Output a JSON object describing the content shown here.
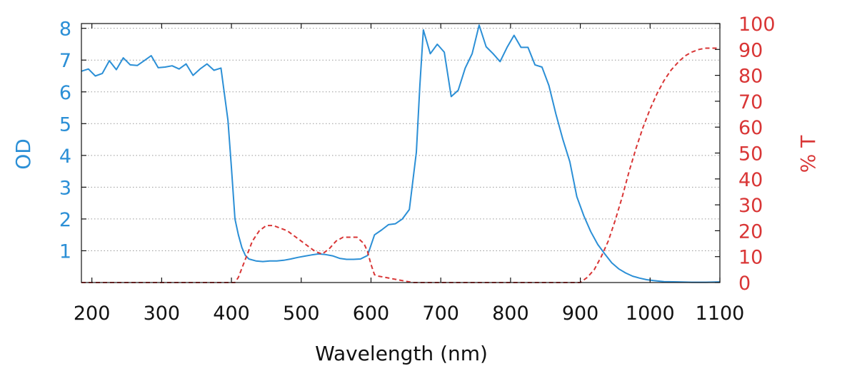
{
  "chart_data": {
    "type": "line",
    "xlabel": "Wavelength (nm)",
    "y1label": "OD",
    "y2label": "% T",
    "xlim": [
      185,
      1100
    ],
    "y1lim": [
      0,
      8.15
    ],
    "y2lim": [
      0,
      100
    ],
    "x_ticks": [
      200,
      300,
      400,
      500,
      600,
      700,
      800,
      900,
      1000,
      1100
    ],
    "y1_ticks": [
      1,
      2,
      3,
      4,
      5,
      6,
      7,
      8
    ],
    "y2_ticks": [
      0,
      10,
      20,
      30,
      40,
      50,
      60,
      70,
      80,
      90,
      100
    ],
    "grid": "horizontal-dotted",
    "colors": {
      "od": "#2b8fd6",
      "transmission": "#d93636",
      "axis": "#111111",
      "grid": "#999999"
    },
    "series": [
      {
        "axis": "left",
        "style": "solid",
        "color": "#2b8fd6",
        "x": [
          185,
          195,
          205,
          215,
          225,
          235,
          245,
          255,
          265,
          275,
          285,
          295,
          305,
          315,
          325,
          335,
          345,
          355,
          365,
          375,
          385,
          395,
          400,
          405,
          410,
          415,
          420,
          425,
          435,
          445,
          455,
          465,
          475,
          485,
          495,
          505,
          515,
          525,
          535,
          545,
          555,
          565,
          575,
          585,
          595,
          605,
          615,
          625,
          635,
          645,
          655,
          665,
          670,
          675,
          685,
          695,
          705,
          715,
          725,
          735,
          745,
          755,
          765,
          775,
          785,
          795,
          805,
          815,
          825,
          835,
          845,
          855,
          865,
          875,
          885,
          895,
          905,
          915,
          925,
          935,
          945,
          955,
          965,
          975,
          985,
          995,
          1005,
          1020,
          1040,
          1060,
          1080,
          1100
        ],
        "y": [
          6.65,
          6.72,
          6.5,
          6.58,
          6.98,
          6.7,
          7.07,
          6.85,
          6.83,
          6.98,
          7.14,
          6.76,
          6.78,
          6.82,
          6.72,
          6.88,
          6.52,
          6.72,
          6.88,
          6.68,
          6.75,
          5.1,
          3.6,
          2.0,
          1.5,
          1.1,
          0.85,
          0.74,
          0.68,
          0.66,
          0.68,
          0.68,
          0.7,
          0.74,
          0.79,
          0.83,
          0.87,
          0.9,
          0.88,
          0.84,
          0.76,
          0.73,
          0.73,
          0.74,
          0.85,
          1.5,
          1.65,
          1.82,
          1.85,
          2.0,
          2.3,
          4.1,
          6.2,
          7.95,
          7.2,
          7.5,
          7.25,
          5.85,
          6.05,
          6.75,
          7.2,
          8.1,
          7.42,
          7.2,
          6.95,
          7.4,
          7.78,
          7.4,
          7.4,
          6.85,
          6.78,
          6.2,
          5.3,
          4.5,
          3.8,
          2.7,
          2.1,
          1.6,
          1.2,
          0.9,
          0.62,
          0.43,
          0.3,
          0.2,
          0.14,
          0.09,
          0.06,
          0.03,
          0.02,
          0.01,
          0.01,
          0.02
        ]
      },
      {
        "axis": "right",
        "style": "dashed",
        "color": "#d93636",
        "x": [
          185,
          405,
          410,
          420,
          430,
          440,
          450,
          460,
          470,
          480,
          490,
          500,
          510,
          520,
          530,
          540,
          550,
          560,
          570,
          580,
          590,
          595,
          600,
          605,
          610,
          620,
          630,
          640,
          650,
          660,
          670,
          680,
          900,
          910,
          920,
          930,
          940,
          950,
          960,
          970,
          980,
          990,
          1000,
          1010,
          1020,
          1030,
          1040,
          1050,
          1060,
          1070,
          1080,
          1090,
          1100
        ],
        "y": [
          0,
          0,
          2,
          9,
          16,
          20,
          22,
          22,
          21,
          20,
          18,
          16,
          14,
          12,
          11,
          13,
          16,
          17.5,
          17.5,
          17.5,
          15,
          12,
          7,
          3,
          2.5,
          2,
          1.5,
          1,
          0.5,
          0,
          0,
          0,
          0,
          2,
          5,
          10,
          16,
          24,
          33,
          43,
          52,
          60,
          67,
          73,
          78,
          82,
          85,
          87.5,
          89,
          90,
          90.5,
          90.5,
          90.5
        ]
      }
    ]
  }
}
